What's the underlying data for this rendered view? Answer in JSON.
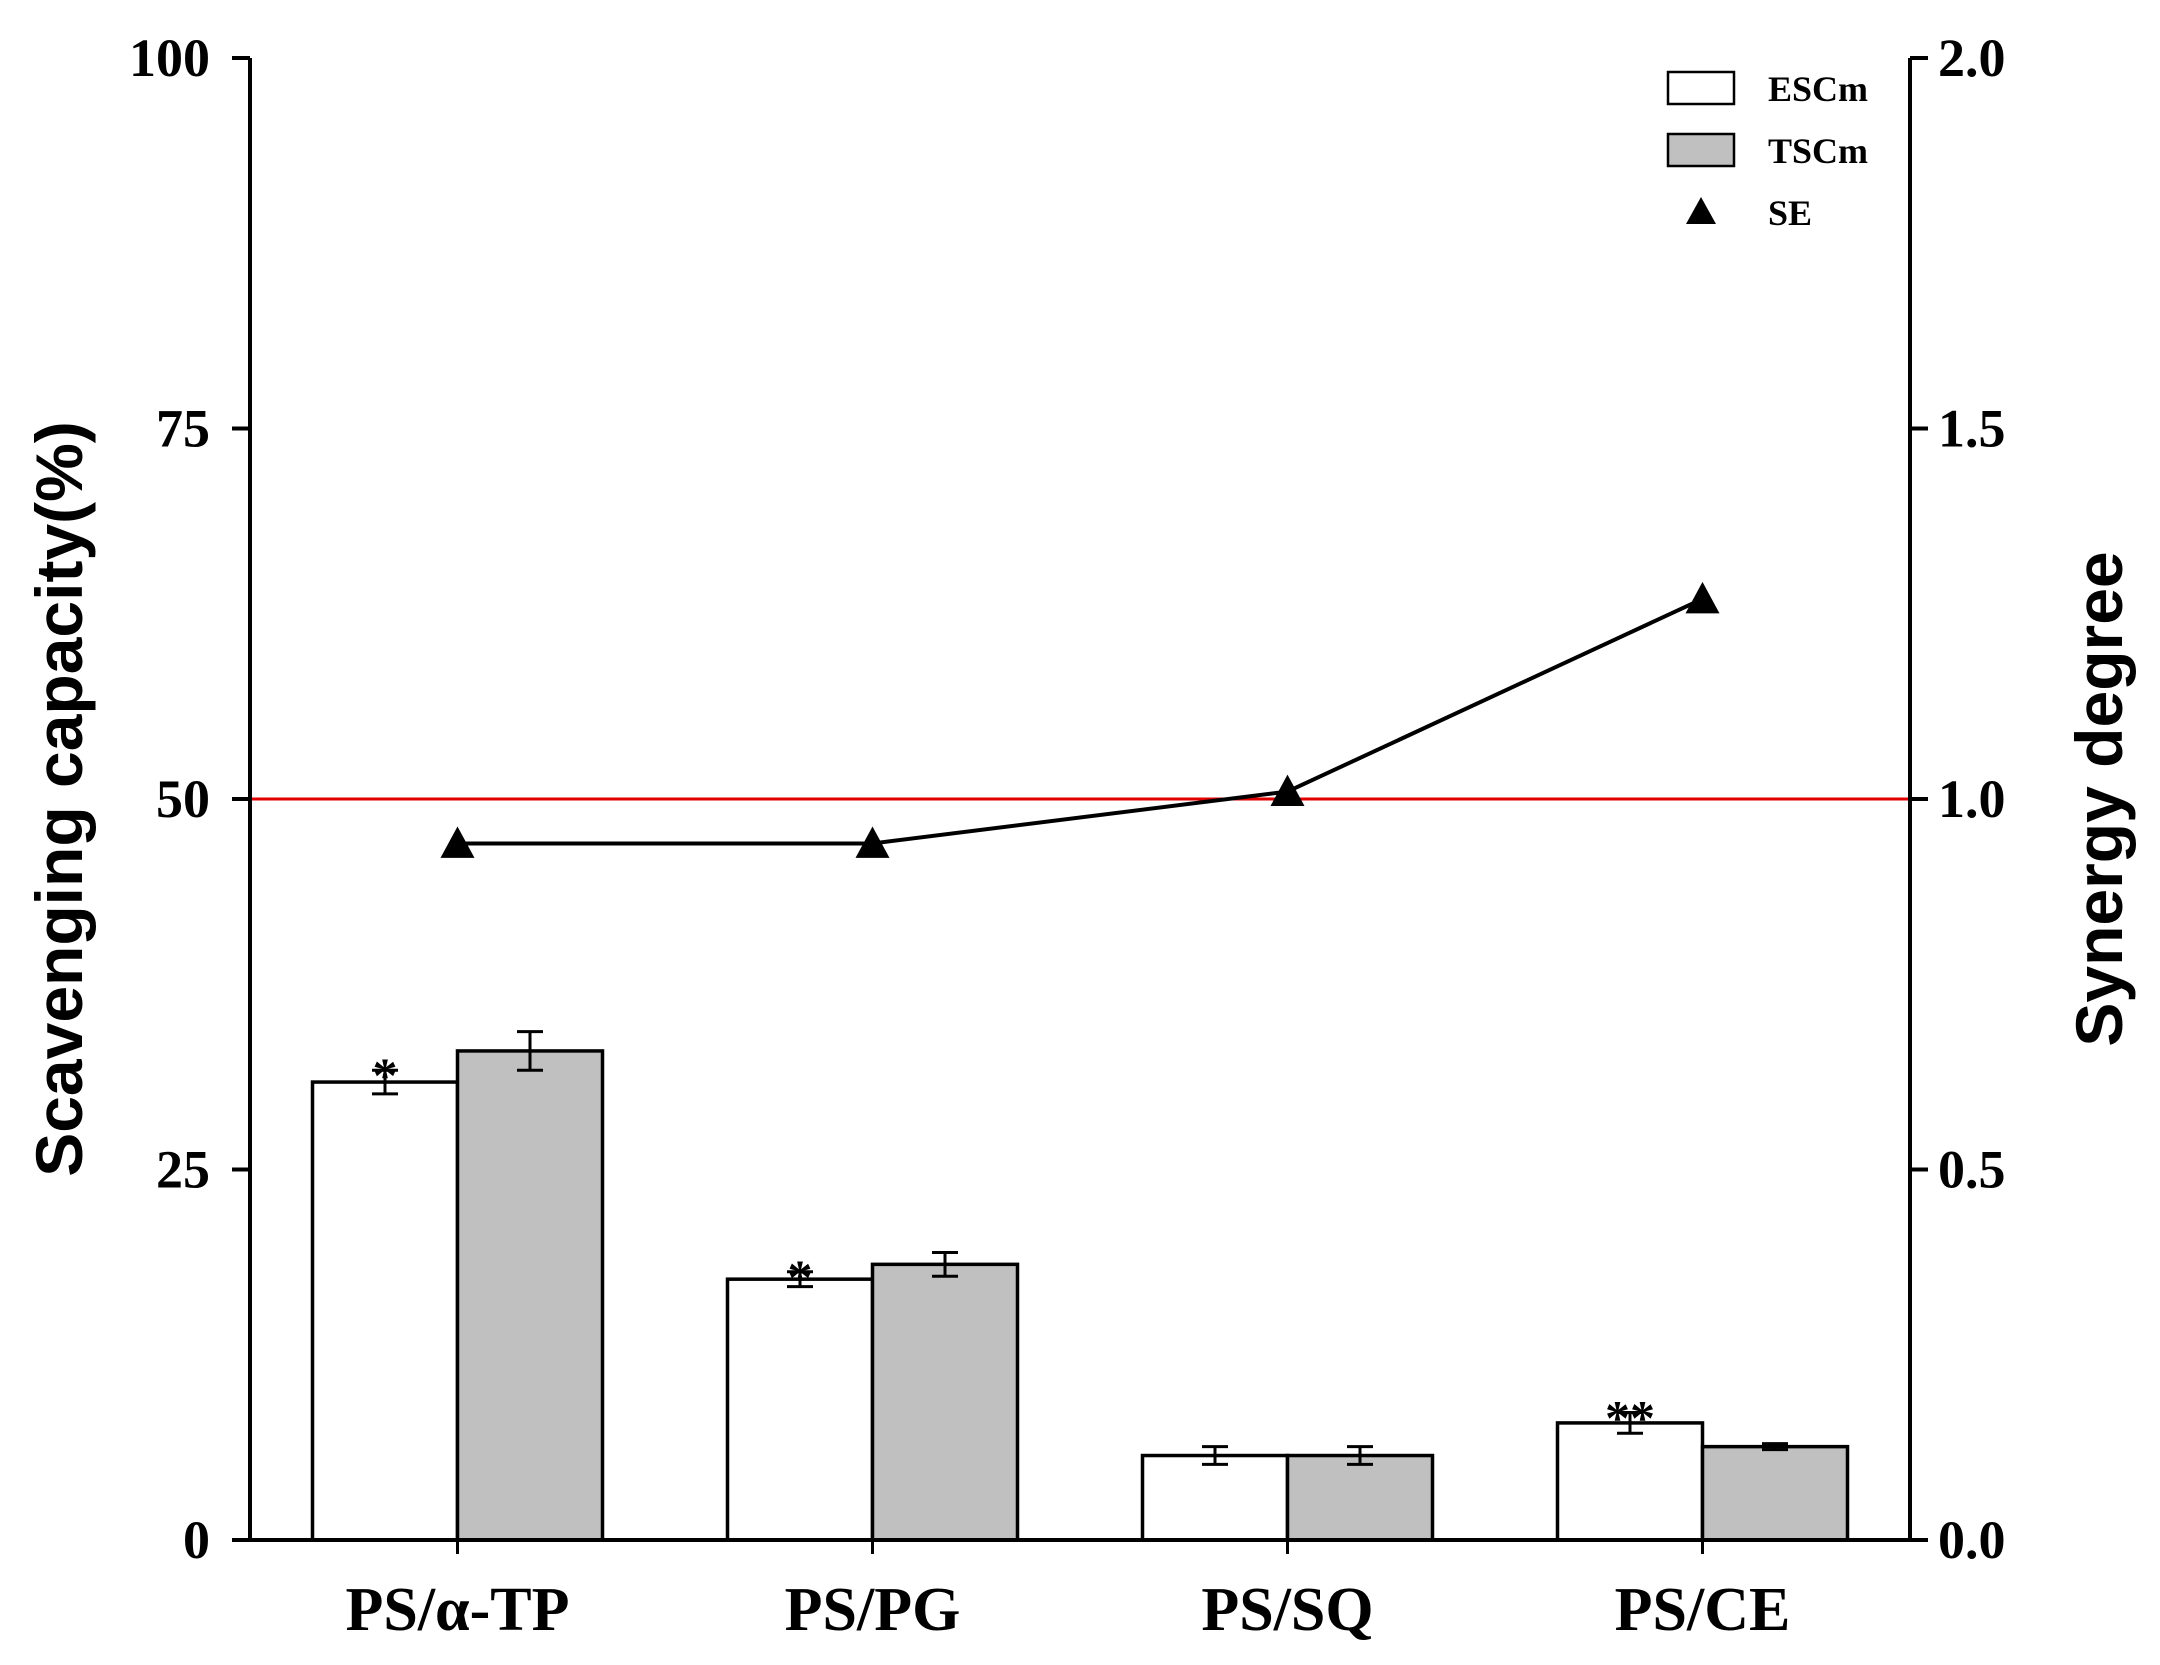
{
  "chart_data": {
    "type": "bar",
    "categories": [
      "PS/α-TP",
      "PS/PG",
      "PS/SQ",
      "PS/CE"
    ],
    "series": [
      {
        "name": "ESCm",
        "kind": "bar",
        "values": [
          30.9,
          17.6,
          5.7,
          7.9
        ],
        "errors": [
          0.8,
          0.5,
          0.6,
          0.7
        ],
        "color": "#ffffff"
      },
      {
        "name": "TSCm",
        "kind": "bar",
        "values": [
          33.0,
          18.6,
          5.7,
          6.3
        ],
        "errors": [
          1.3,
          0.8,
          0.6,
          0.2
        ],
        "color": "#c0c0c0"
      },
      {
        "name": "SE",
        "kind": "line",
        "axis": "right",
        "values": [
          0.94,
          0.94,
          1.01,
          1.27
        ],
        "marker": "triangle",
        "color": "#000000"
      }
    ],
    "annotations": [
      "*",
      "*",
      "",
      "**"
    ],
    "reference_line": {
      "axis": "right",
      "value": 1.0,
      "color": "#e00000"
    },
    "ylabel": "Scavenging capacity(%)",
    "y2label": "Synergy degree",
    "ylim": [
      0,
      100
    ],
    "y2lim": [
      0.0,
      2.0
    ],
    "yticks": [
      "0",
      "25",
      "50",
      "75",
      "100"
    ],
    "y2ticks": [
      "0.0",
      "0.5",
      "1.0",
      "1.5",
      "2.0"
    ],
    "legend": {
      "position": "top-right",
      "entries": [
        "ESCm",
        "TSCm",
        "SE"
      ]
    }
  }
}
